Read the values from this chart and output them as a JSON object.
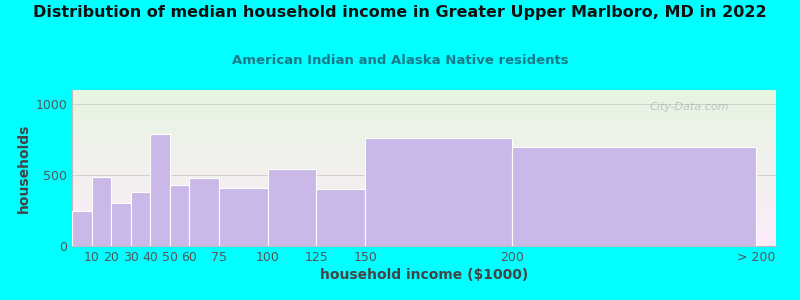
{
  "title": "Distribution of median household income in Greater Upper Marlboro, MD in 2022",
  "subtitle": "American Indian and Alaska Native residents",
  "xlabel": "household income ($1000)",
  "ylabel": "households",
  "bar_edges": [
    0,
    10,
    20,
    30,
    40,
    50,
    60,
    75,
    100,
    125,
    150,
    225,
    350
  ],
  "bar_widths_label": [
    "10",
    "20",
    "30",
    "40",
    "50",
    "60",
    "75",
    "100",
    "125",
    "150",
    "200",
    "> 200"
  ],
  "tick_positions": [
    10,
    20,
    30,
    40,
    50,
    60,
    75,
    100,
    125,
    150,
    225,
    350
  ],
  "tick_labels": [
    "10",
    "20",
    "30",
    "40",
    "50",
    "60",
    "75",
    "100",
    "125",
    "150",
    "200",
    "> 200"
  ],
  "values": [
    250,
    490,
    300,
    380,
    790,
    430,
    480,
    410,
    545,
    400,
    760,
    700
  ],
  "bar_color": "#c9b8e8",
  "bar_edge_color": "#ffffff",
  "background_color": "#00ffff",
  "title_color": "#111111",
  "subtitle_color": "#1a7a8a",
  "axis_label_color": "#444444",
  "tick_color": "#555555",
  "ylim": [
    0,
    1100
  ],
  "xlim": [
    0,
    360
  ],
  "yticks": [
    0,
    500,
    1000
  ],
  "watermark": "City-Data.com",
  "title_fontsize": 11.5,
  "subtitle_fontsize": 9.5,
  "label_fontsize": 9
}
